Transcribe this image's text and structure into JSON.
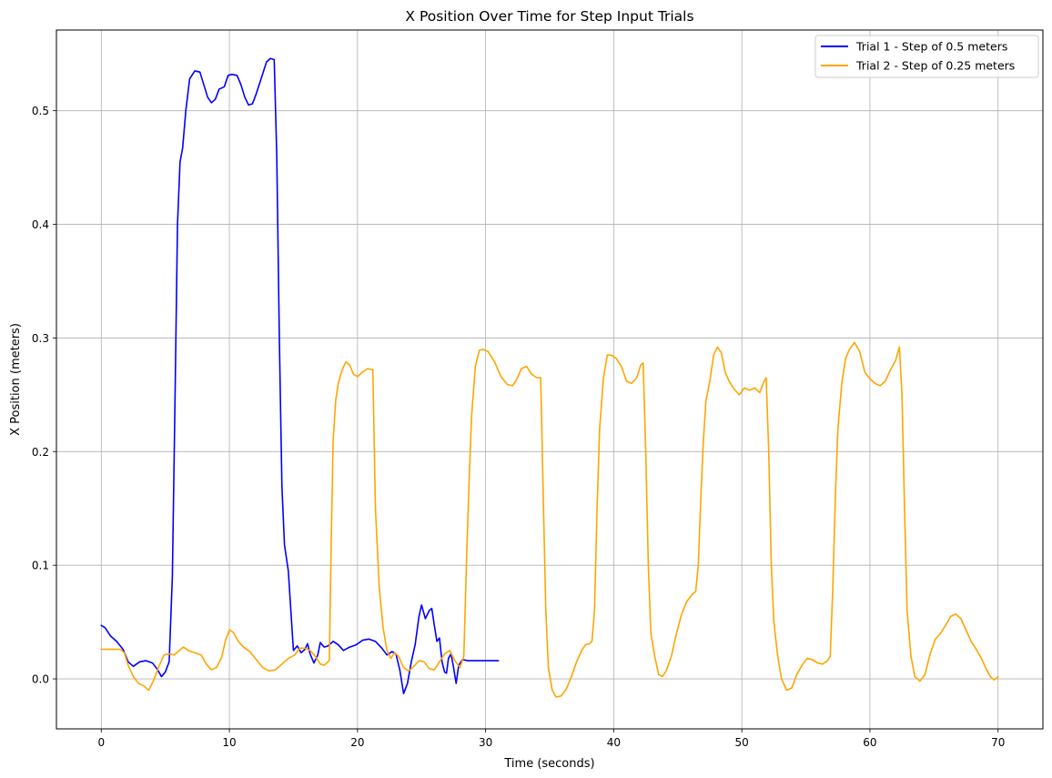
{
  "chart_data": {
    "type": "line",
    "title": "X Position Over Time for Step Input Trials",
    "xlabel": "Time (seconds)",
    "ylabel": "X Position (meters)",
    "xlim": [
      -3.5,
      73.5
    ],
    "ylim": [
      -0.044,
      0.571
    ],
    "x_ticks": [
      0,
      10,
      20,
      30,
      40,
      50,
      60,
      70
    ],
    "y_ticks": [
      0.0,
      0.1,
      0.2,
      0.3,
      0.4,
      0.5
    ],
    "grid": true,
    "legend_position": "top-right",
    "series": [
      {
        "name": "Trial 1 - Step of 0.5 meters",
        "color": "#0000ff",
        "points": [
          [
            0,
            0.047
          ],
          [
            0.3,
            0.045
          ],
          [
            0.7,
            0.038
          ],
          [
            1.2,
            0.033
          ],
          [
            1.7,
            0.026
          ],
          [
            2.1,
            0.015
          ],
          [
            2.5,
            0.011
          ],
          [
            3.0,
            0.015
          ],
          [
            3.5,
            0.016
          ],
          [
            4.0,
            0.014
          ],
          [
            4.4,
            0.008
          ],
          [
            4.7,
            0.002
          ],
          [
            5.0,
            0.006
          ],
          [
            5.3,
            0.015
          ],
          [
            5.55,
            0.09
          ],
          [
            5.75,
            0.24
          ],
          [
            5.95,
            0.4
          ],
          [
            6.15,
            0.455
          ],
          [
            6.35,
            0.467
          ],
          [
            6.6,
            0.5
          ],
          [
            6.9,
            0.528
          ],
          [
            7.3,
            0.535
          ],
          [
            7.7,
            0.534
          ],
          [
            8.0,
            0.523
          ],
          [
            8.3,
            0.512
          ],
          [
            8.6,
            0.507
          ],
          [
            8.9,
            0.51
          ],
          [
            9.2,
            0.519
          ],
          [
            9.6,
            0.521
          ],
          [
            9.9,
            0.531
          ],
          [
            10.2,
            0.532
          ],
          [
            10.6,
            0.531
          ],
          [
            10.9,
            0.523
          ],
          [
            11.2,
            0.512
          ],
          [
            11.5,
            0.505
          ],
          [
            11.8,
            0.506
          ],
          [
            12.1,
            0.515
          ],
          [
            12.5,
            0.529
          ],
          [
            12.9,
            0.543
          ],
          [
            13.2,
            0.546
          ],
          [
            13.5,
            0.545
          ],
          [
            13.7,
            0.46
          ],
          [
            13.9,
            0.3
          ],
          [
            14.1,
            0.17
          ],
          [
            14.3,
            0.118
          ],
          [
            14.6,
            0.095
          ],
          [
            14.8,
            0.06
          ],
          [
            15.0,
            0.025
          ],
          [
            15.3,
            0.029
          ],
          [
            15.6,
            0.023
          ],
          [
            15.9,
            0.026
          ],
          [
            16.1,
            0.031
          ],
          [
            16.3,
            0.022
          ],
          [
            16.6,
            0.014
          ],
          [
            16.9,
            0.021
          ],
          [
            17.1,
            0.032
          ],
          [
            17.4,
            0.028
          ],
          [
            17.7,
            0.029
          ],
          [
            18.1,
            0.033
          ],
          [
            18.5,
            0.03
          ],
          [
            18.9,
            0.025
          ],
          [
            19.4,
            0.028
          ],
          [
            19.9,
            0.03
          ],
          [
            20.4,
            0.034
          ],
          [
            20.9,
            0.035
          ],
          [
            21.4,
            0.033
          ],
          [
            21.9,
            0.027
          ],
          [
            22.3,
            0.021
          ],
          [
            22.7,
            0.024
          ],
          [
            23.0,
            0.022
          ],
          [
            23.3,
            0.008
          ],
          [
            23.6,
            -0.013
          ],
          [
            23.9,
            -0.004
          ],
          [
            24.2,
            0.015
          ],
          [
            24.5,
            0.03
          ],
          [
            24.8,
            0.055
          ],
          [
            25.0,
            0.065
          ],
          [
            25.3,
            0.053
          ],
          [
            25.6,
            0.06
          ],
          [
            25.8,
            0.062
          ],
          [
            26.0,
            0.047
          ],
          [
            26.2,
            0.033
          ],
          [
            26.4,
            0.036
          ],
          [
            26.6,
            0.015
          ],
          [
            26.8,
            0.006
          ],
          [
            26.95,
            0.005
          ],
          [
            27.1,
            0.018
          ],
          [
            27.3,
            0.022
          ],
          [
            27.5,
            0.01
          ],
          [
            27.7,
            -0.004
          ],
          [
            27.9,
            0.012
          ],
          [
            28.2,
            0.017
          ],
          [
            28.6,
            0.016
          ],
          [
            29.5,
            0.016
          ],
          [
            31,
            0.016
          ]
        ]
      },
      {
        "name": "Trial 2 - Step of 0.25 meters",
        "color": "#ffa500",
        "points": [
          [
            0,
            0.026
          ],
          [
            0.5,
            0.026
          ],
          [
            1.0,
            0.026
          ],
          [
            1.5,
            0.026
          ],
          [
            1.8,
            0.023
          ],
          [
            2.1,
            0.012
          ],
          [
            2.5,
            0.002
          ],
          [
            2.9,
            -0.004
          ],
          [
            3.3,
            -0.006
          ],
          [
            3.7,
            -0.01
          ],
          [
            4.1,
            -0.001
          ],
          [
            4.5,
            0.011
          ],
          [
            4.9,
            0.021
          ],
          [
            5.3,
            0.022
          ],
          [
            5.7,
            0.021
          ],
          [
            6.1,
            0.025
          ],
          [
            6.4,
            0.028
          ],
          [
            6.8,
            0.025
          ],
          [
            7.3,
            0.023
          ],
          [
            7.8,
            0.021
          ],
          [
            8.2,
            0.013
          ],
          [
            8.6,
            0.008
          ],
          [
            9.0,
            0.01
          ],
          [
            9.4,
            0.019
          ],
          [
            9.7,
            0.034
          ],
          [
            10.0,
            0.043
          ],
          [
            10.3,
            0.041
          ],
          [
            10.7,
            0.033
          ],
          [
            11.1,
            0.028
          ],
          [
            11.6,
            0.024
          ],
          [
            12.1,
            0.017
          ],
          [
            12.6,
            0.01
          ],
          [
            13.1,
            0.007
          ],
          [
            13.6,
            0.008
          ],
          [
            14.1,
            0.013
          ],
          [
            14.6,
            0.018
          ],
          [
            15.1,
            0.021
          ],
          [
            15.5,
            0.027
          ],
          [
            15.9,
            0.027
          ],
          [
            16.3,
            0.025
          ],
          [
            16.7,
            0.02
          ],
          [
            17.1,
            0.013
          ],
          [
            17.4,
            0.012
          ],
          [
            17.6,
            0.014
          ],
          [
            17.8,
            0.016
          ],
          [
            17.95,
            0.12
          ],
          [
            18.1,
            0.21
          ],
          [
            18.3,
            0.245
          ],
          [
            18.5,
            0.26
          ],
          [
            18.8,
            0.272
          ],
          [
            19.1,
            0.279
          ],
          [
            19.4,
            0.276
          ],
          [
            19.7,
            0.268
          ],
          [
            20.0,
            0.266
          ],
          [
            20.4,
            0.27
          ],
          [
            20.8,
            0.273
          ],
          [
            21.2,
            0.272
          ],
          [
            21.4,
            0.15
          ],
          [
            21.7,
            0.08
          ],
          [
            22.0,
            0.045
          ],
          [
            22.3,
            0.025
          ],
          [
            22.6,
            0.018
          ],
          [
            22.9,
            0.023
          ],
          [
            23.2,
            0.02
          ],
          [
            23.6,
            0.01
          ],
          [
            24.0,
            0.007
          ],
          [
            24.4,
            0.011
          ],
          [
            24.8,
            0.016
          ],
          [
            25.2,
            0.015
          ],
          [
            25.6,
            0.009
          ],
          [
            26.0,
            0.008
          ],
          [
            26.4,
            0.015
          ],
          [
            26.8,
            0.022
          ],
          [
            27.2,
            0.025
          ],
          [
            27.6,
            0.016
          ],
          [
            28.0,
            0.01
          ],
          [
            28.3,
            0.02
          ],
          [
            28.5,
            0.1
          ],
          [
            28.7,
            0.17
          ],
          [
            28.9,
            0.23
          ],
          [
            29.2,
            0.275
          ],
          [
            29.5,
            0.289
          ],
          [
            29.8,
            0.29
          ],
          [
            30.2,
            0.288
          ],
          [
            30.7,
            0.279
          ],
          [
            31.2,
            0.266
          ],
          [
            31.7,
            0.259
          ],
          [
            32.1,
            0.258
          ],
          [
            32.4,
            0.263
          ],
          [
            32.8,
            0.273
          ],
          [
            33.2,
            0.275
          ],
          [
            33.6,
            0.268
          ],
          [
            34.0,
            0.265
          ],
          [
            34.3,
            0.265
          ],
          [
            34.5,
            0.16
          ],
          [
            34.7,
            0.06
          ],
          [
            34.9,
            0.01
          ],
          [
            35.2,
            -0.01
          ],
          [
            35.5,
            -0.016
          ],
          [
            35.9,
            -0.015
          ],
          [
            36.3,
            -0.009
          ],
          [
            36.7,
            0.002
          ],
          [
            37.1,
            0.015
          ],
          [
            37.5,
            0.025
          ],
          [
            37.8,
            0.03
          ],
          [
            38.1,
            0.031
          ],
          [
            38.3,
            0.033
          ],
          [
            38.5,
            0.06
          ],
          [
            38.7,
            0.15
          ],
          [
            38.9,
            0.22
          ],
          [
            39.2,
            0.265
          ],
          [
            39.5,
            0.285
          ],
          [
            39.8,
            0.285
          ],
          [
            40.2,
            0.282
          ],
          [
            40.6,
            0.275
          ],
          [
            41.0,
            0.262
          ],
          [
            41.4,
            0.26
          ],
          [
            41.8,
            0.265
          ],
          [
            42.1,
            0.276
          ],
          [
            42.3,
            0.278
          ],
          [
            42.5,
            0.2
          ],
          [
            42.7,
            0.1
          ],
          [
            42.9,
            0.04
          ],
          [
            43.2,
            0.02
          ],
          [
            43.5,
            0.004
          ],
          [
            43.8,
            0.002
          ],
          [
            44.1,
            0.007
          ],
          [
            44.5,
            0.02
          ],
          [
            44.9,
            0.04
          ],
          [
            45.3,
            0.057
          ],
          [
            45.7,
            0.068
          ],
          [
            46.1,
            0.074
          ],
          [
            46.4,
            0.077
          ],
          [
            46.6,
            0.1
          ],
          [
            46.8,
            0.16
          ],
          [
            47.0,
            0.21
          ],
          [
            47.2,
            0.245
          ],
          [
            47.5,
            0.262
          ],
          [
            47.8,
            0.285
          ],
          [
            48.1,
            0.292
          ],
          [
            48.4,
            0.287
          ],
          [
            48.7,
            0.27
          ],
          [
            49.0,
            0.262
          ],
          [
            49.4,
            0.255
          ],
          [
            49.8,
            0.25
          ],
          [
            50.2,
            0.256
          ],
          [
            50.6,
            0.254
          ],
          [
            51.0,
            0.256
          ],
          [
            51.4,
            0.252
          ],
          [
            51.7,
            0.261
          ],
          [
            51.9,
            0.265
          ],
          [
            52.1,
            0.2
          ],
          [
            52.3,
            0.1
          ],
          [
            52.5,
            0.05
          ],
          [
            52.8,
            0.02
          ],
          [
            53.1,
            0.0
          ],
          [
            53.5,
            -0.01
          ],
          [
            53.9,
            -0.008
          ],
          [
            54.3,
            0.004
          ],
          [
            54.7,
            0.012
          ],
          [
            55.1,
            0.018
          ],
          [
            55.5,
            0.017
          ],
          [
            55.9,
            0.014
          ],
          [
            56.3,
            0.013
          ],
          [
            56.7,
            0.016
          ],
          [
            56.9,
            0.02
          ],
          [
            57.1,
            0.08
          ],
          [
            57.3,
            0.16
          ],
          [
            57.5,
            0.22
          ],
          [
            57.8,
            0.26
          ],
          [
            58.1,
            0.282
          ],
          [
            58.4,
            0.29
          ],
          [
            58.8,
            0.296
          ],
          [
            59.2,
            0.288
          ],
          [
            59.6,
            0.27
          ],
          [
            60.0,
            0.264
          ],
          [
            60.4,
            0.26
          ],
          [
            60.8,
            0.258
          ],
          [
            61.2,
            0.262
          ],
          [
            61.6,
            0.272
          ],
          [
            62.0,
            0.28
          ],
          [
            62.3,
            0.292
          ],
          [
            62.5,
            0.25
          ],
          [
            62.7,
            0.15
          ],
          [
            62.9,
            0.06
          ],
          [
            63.2,
            0.02
          ],
          [
            63.5,
            0.002
          ],
          [
            63.9,
            -0.002
          ],
          [
            64.3,
            0.004
          ],
          [
            64.7,
            0.022
          ],
          [
            65.1,
            0.035
          ],
          [
            65.5,
            0.04
          ],
          [
            65.9,
            0.047
          ],
          [
            66.3,
            0.055
          ],
          [
            66.7,
            0.057
          ],
          [
            67.1,
            0.053
          ],
          [
            67.5,
            0.043
          ],
          [
            67.9,
            0.033
          ],
          [
            68.3,
            0.026
          ],
          [
            68.7,
            0.018
          ],
          [
            69.1,
            0.008
          ],
          [
            69.4,
            0.002
          ],
          [
            69.7,
            -0.001
          ],
          [
            70.0,
            0.002
          ]
        ]
      }
    ]
  }
}
